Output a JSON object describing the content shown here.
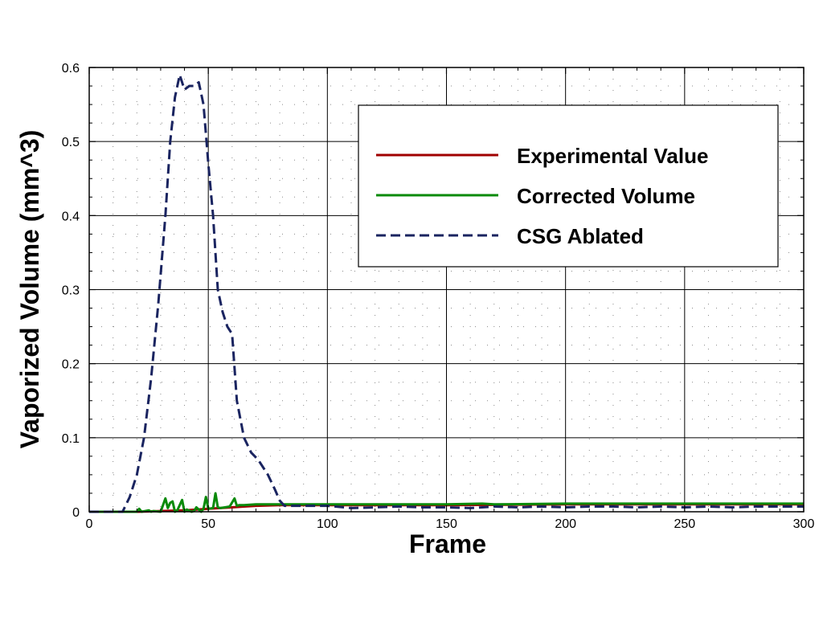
{
  "chart_data": {
    "type": "line",
    "title": "",
    "xlabel": "Frame",
    "ylabel": "Vaporized Volume (mm^3)",
    "xlim": [
      0,
      300
    ],
    "ylim": [
      0,
      0.6
    ],
    "xticks": [
      0,
      50,
      100,
      150,
      200,
      250,
      300
    ],
    "yticks": [
      0,
      0.1,
      0.2,
      0.3,
      0.4,
      0.5,
      0.6
    ],
    "xtick_labels": [
      "0",
      "50",
      "100",
      "150",
      "200",
      "250",
      "300"
    ],
    "ytick_labels": [
      "0",
      "0.1",
      "0.2",
      "0.3",
      "0.4",
      "0.5",
      "0.6"
    ],
    "grid": true,
    "minor_grid": "dotted",
    "legend": "upper-right",
    "series": [
      {
        "name": "Experimental Value",
        "color": "#a00000",
        "style": "solid",
        "x": [
          0,
          20,
          40,
          50,
          55,
          60,
          65,
          70,
          80,
          90,
          100,
          150,
          200,
          250,
          300
        ],
        "y": [
          0,
          0,
          0.002,
          0.004,
          0.005,
          0.006,
          0.007,
          0.008,
          0.009,
          0.009,
          0.009,
          0.009,
          0.01,
          0.01,
          0.01
        ]
      },
      {
        "name": "Corrected Volume",
        "color": "#0a8a0a",
        "style": "solid",
        "x": [
          0,
          20,
          21,
          22,
          25,
          26,
          27,
          30,
          32,
          33,
          34,
          35,
          36,
          37,
          39,
          40,
          41,
          43,
          44,
          45,
          47,
          48,
          49,
          50,
          52,
          53,
          54,
          55,
          57,
          59,
          61,
          62,
          63,
          65,
          70,
          80,
          90,
          100,
          150,
          165,
          170,
          200,
          250,
          300
        ],
        "y": [
          0,
          0,
          0.004,
          0,
          0.002,
          0,
          0.001,
          0,
          0.018,
          0.005,
          0.012,
          0.014,
          0,
          0.002,
          0.016,
          0,
          0.003,
          0,
          0.001,
          0.006,
          0,
          0.004,
          0.02,
          0.004,
          0.005,
          0.025,
          0.006,
          0.005,
          0.006,
          0.007,
          0.018,
          0.008,
          0.009,
          0.009,
          0.01,
          0.01,
          0.01,
          0.01,
          0.01,
          0.011,
          0.01,
          0.011,
          0.011,
          0.011
        ]
      },
      {
        "name": "CSG Ablated",
        "color": "#1a2460",
        "style": "dashed",
        "x": [
          0,
          14,
          17,
          20,
          23,
          26,
          29,
          32,
          34,
          36,
          38,
          40,
          42,
          44,
          46,
          48,
          50,
          52,
          54,
          56,
          58,
          60,
          62,
          65,
          68,
          71,
          75,
          78,
          80,
          82,
          85,
          90,
          100,
          110,
          120,
          130,
          140,
          150,
          160,
          170,
          180,
          190,
          200,
          210,
          220,
          230,
          240,
          250,
          260,
          270,
          280,
          290,
          300
        ],
        "y": [
          0,
          0,
          0.02,
          0.05,
          0.1,
          0.18,
          0.28,
          0.4,
          0.5,
          0.56,
          0.59,
          0.57,
          0.575,
          0.575,
          0.58,
          0.55,
          0.47,
          0.4,
          0.3,
          0.27,
          0.25,
          0.24,
          0.15,
          0.1,
          0.08,
          0.07,
          0.05,
          0.03,
          0.015,
          0.008,
          0.008,
          0.008,
          0.008,
          0.005,
          0.006,
          0.007,
          0.006,
          0.006,
          0.005,
          0.007,
          0.006,
          0.007,
          0.006,
          0.007,
          0.007,
          0.006,
          0.007,
          0.006,
          0.007,
          0.006,
          0.007,
          0.007,
          0.007
        ]
      }
    ]
  }
}
